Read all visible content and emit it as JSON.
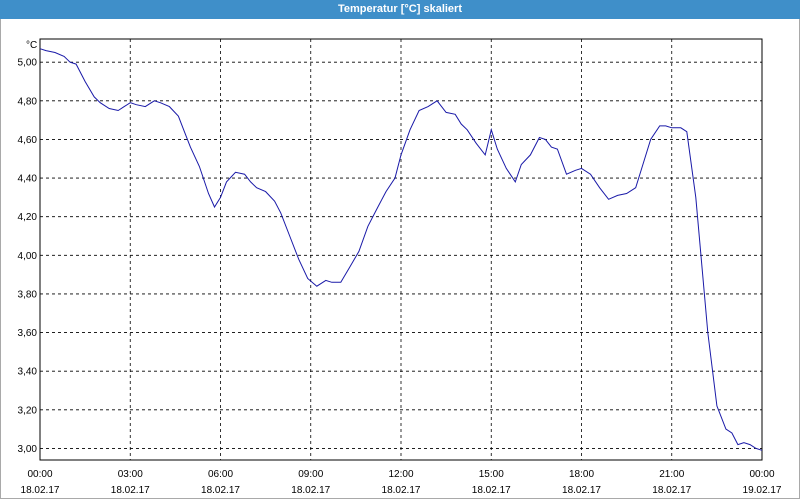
{
  "window": {
    "title": "Temperatur [°C] skaliert"
  },
  "chart_data": {
    "type": "line",
    "title": "Temperatur [°C] skaliert",
    "ylabel": "°C",
    "xlabel": "",
    "ylim": [
      2.94,
      5.12
    ],
    "xlim": [
      0,
      24
    ],
    "grid": true,
    "line_color": "#1a1aa8",
    "y_ticks": [
      "5,00",
      "4,80",
      "4,60",
      "4,40",
      "4,20",
      "4,00",
      "3,80",
      "3,60",
      "3,40",
      "3,20",
      "3,00"
    ],
    "y_tick_values": [
      5.0,
      4.8,
      4.6,
      4.4,
      4.2,
      4.0,
      3.8,
      3.6,
      3.4,
      3.2,
      3.0
    ],
    "x_ticks": [
      {
        "time": "00:00",
        "date": "18.02.17"
      },
      {
        "time": "03:00",
        "date": "18.02.17"
      },
      {
        "time": "06:00",
        "date": "18.02.17"
      },
      {
        "time": "09:00",
        "date": "18.02.17"
      },
      {
        "time": "12:00",
        "date": "18.02.17"
      },
      {
        "time": "15:00",
        "date": "18.02.17"
      },
      {
        "time": "18:00",
        "date": "18.02.17"
      },
      {
        "time": "21:00",
        "date": "18.02.17"
      },
      {
        "time": "00:00",
        "date": "19.02.17"
      }
    ],
    "series": [
      {
        "x": [
          0,
          0.2,
          0.5,
          0.8,
          1.0,
          1.2,
          1.5,
          1.8,
          2.0,
          2.3,
          2.6,
          2.8,
          3.0,
          3.2,
          3.5,
          3.8,
          4.0,
          4.3,
          4.6,
          4.8,
          5.0,
          5.3,
          5.6,
          5.8,
          6.0,
          6.2,
          6.5,
          6.8,
          7.0,
          7.2,
          7.5,
          7.8,
          8.0,
          8.3,
          8.6,
          8.9,
          9.2,
          9.5,
          9.7,
          10.0,
          10.3,
          10.6,
          10.9,
          11.2,
          11.5,
          11.8,
          12.0,
          12.3,
          12.6,
          12.9,
          13.2,
          13.5,
          13.8,
          14.0,
          14.2,
          14.5,
          14.8,
          15.0,
          15.2,
          15.5,
          15.8,
          16.0,
          16.3,
          16.6,
          16.8,
          17.0,
          17.2,
          17.5,
          17.8,
          18.0,
          18.3,
          18.6,
          18.9,
          19.2,
          19.5,
          19.8,
          20.0,
          20.3,
          20.6,
          20.8,
          21.0,
          21.3,
          21.5,
          21.8,
          22.0,
          22.2,
          22.5,
          22.8,
          23.0,
          23.2,
          23.4,
          23.6,
          23.8,
          24.0
        ],
        "y": [
          5.07,
          5.06,
          5.05,
          5.03,
          5.0,
          4.99,
          4.9,
          4.82,
          4.79,
          4.76,
          4.75,
          4.77,
          4.79,
          4.78,
          4.77,
          4.8,
          4.79,
          4.77,
          4.72,
          4.64,
          4.56,
          4.46,
          4.32,
          4.25,
          4.3,
          4.38,
          4.43,
          4.42,
          4.38,
          4.35,
          4.33,
          4.28,
          4.22,
          4.1,
          3.98,
          3.88,
          3.84,
          3.87,
          3.86,
          3.86,
          3.94,
          4.02,
          4.15,
          4.24,
          4.33,
          4.4,
          4.52,
          4.65,
          4.75,
          4.77,
          4.8,
          4.74,
          4.73,
          4.68,
          4.65,
          4.58,
          4.52,
          4.65,
          4.55,
          4.45,
          4.38,
          4.47,
          4.52,
          4.61,
          4.6,
          4.56,
          4.55,
          4.42,
          4.44,
          4.45,
          4.42,
          4.35,
          4.29,
          4.31,
          4.32,
          4.35,
          4.45,
          4.6,
          4.67,
          4.67,
          4.66,
          4.66,
          4.64,
          4.3,
          3.95,
          3.6,
          3.22,
          3.1,
          3.08,
          3.02,
          3.03,
          3.02,
          3.0,
          2.99
        ]
      }
    ]
  }
}
